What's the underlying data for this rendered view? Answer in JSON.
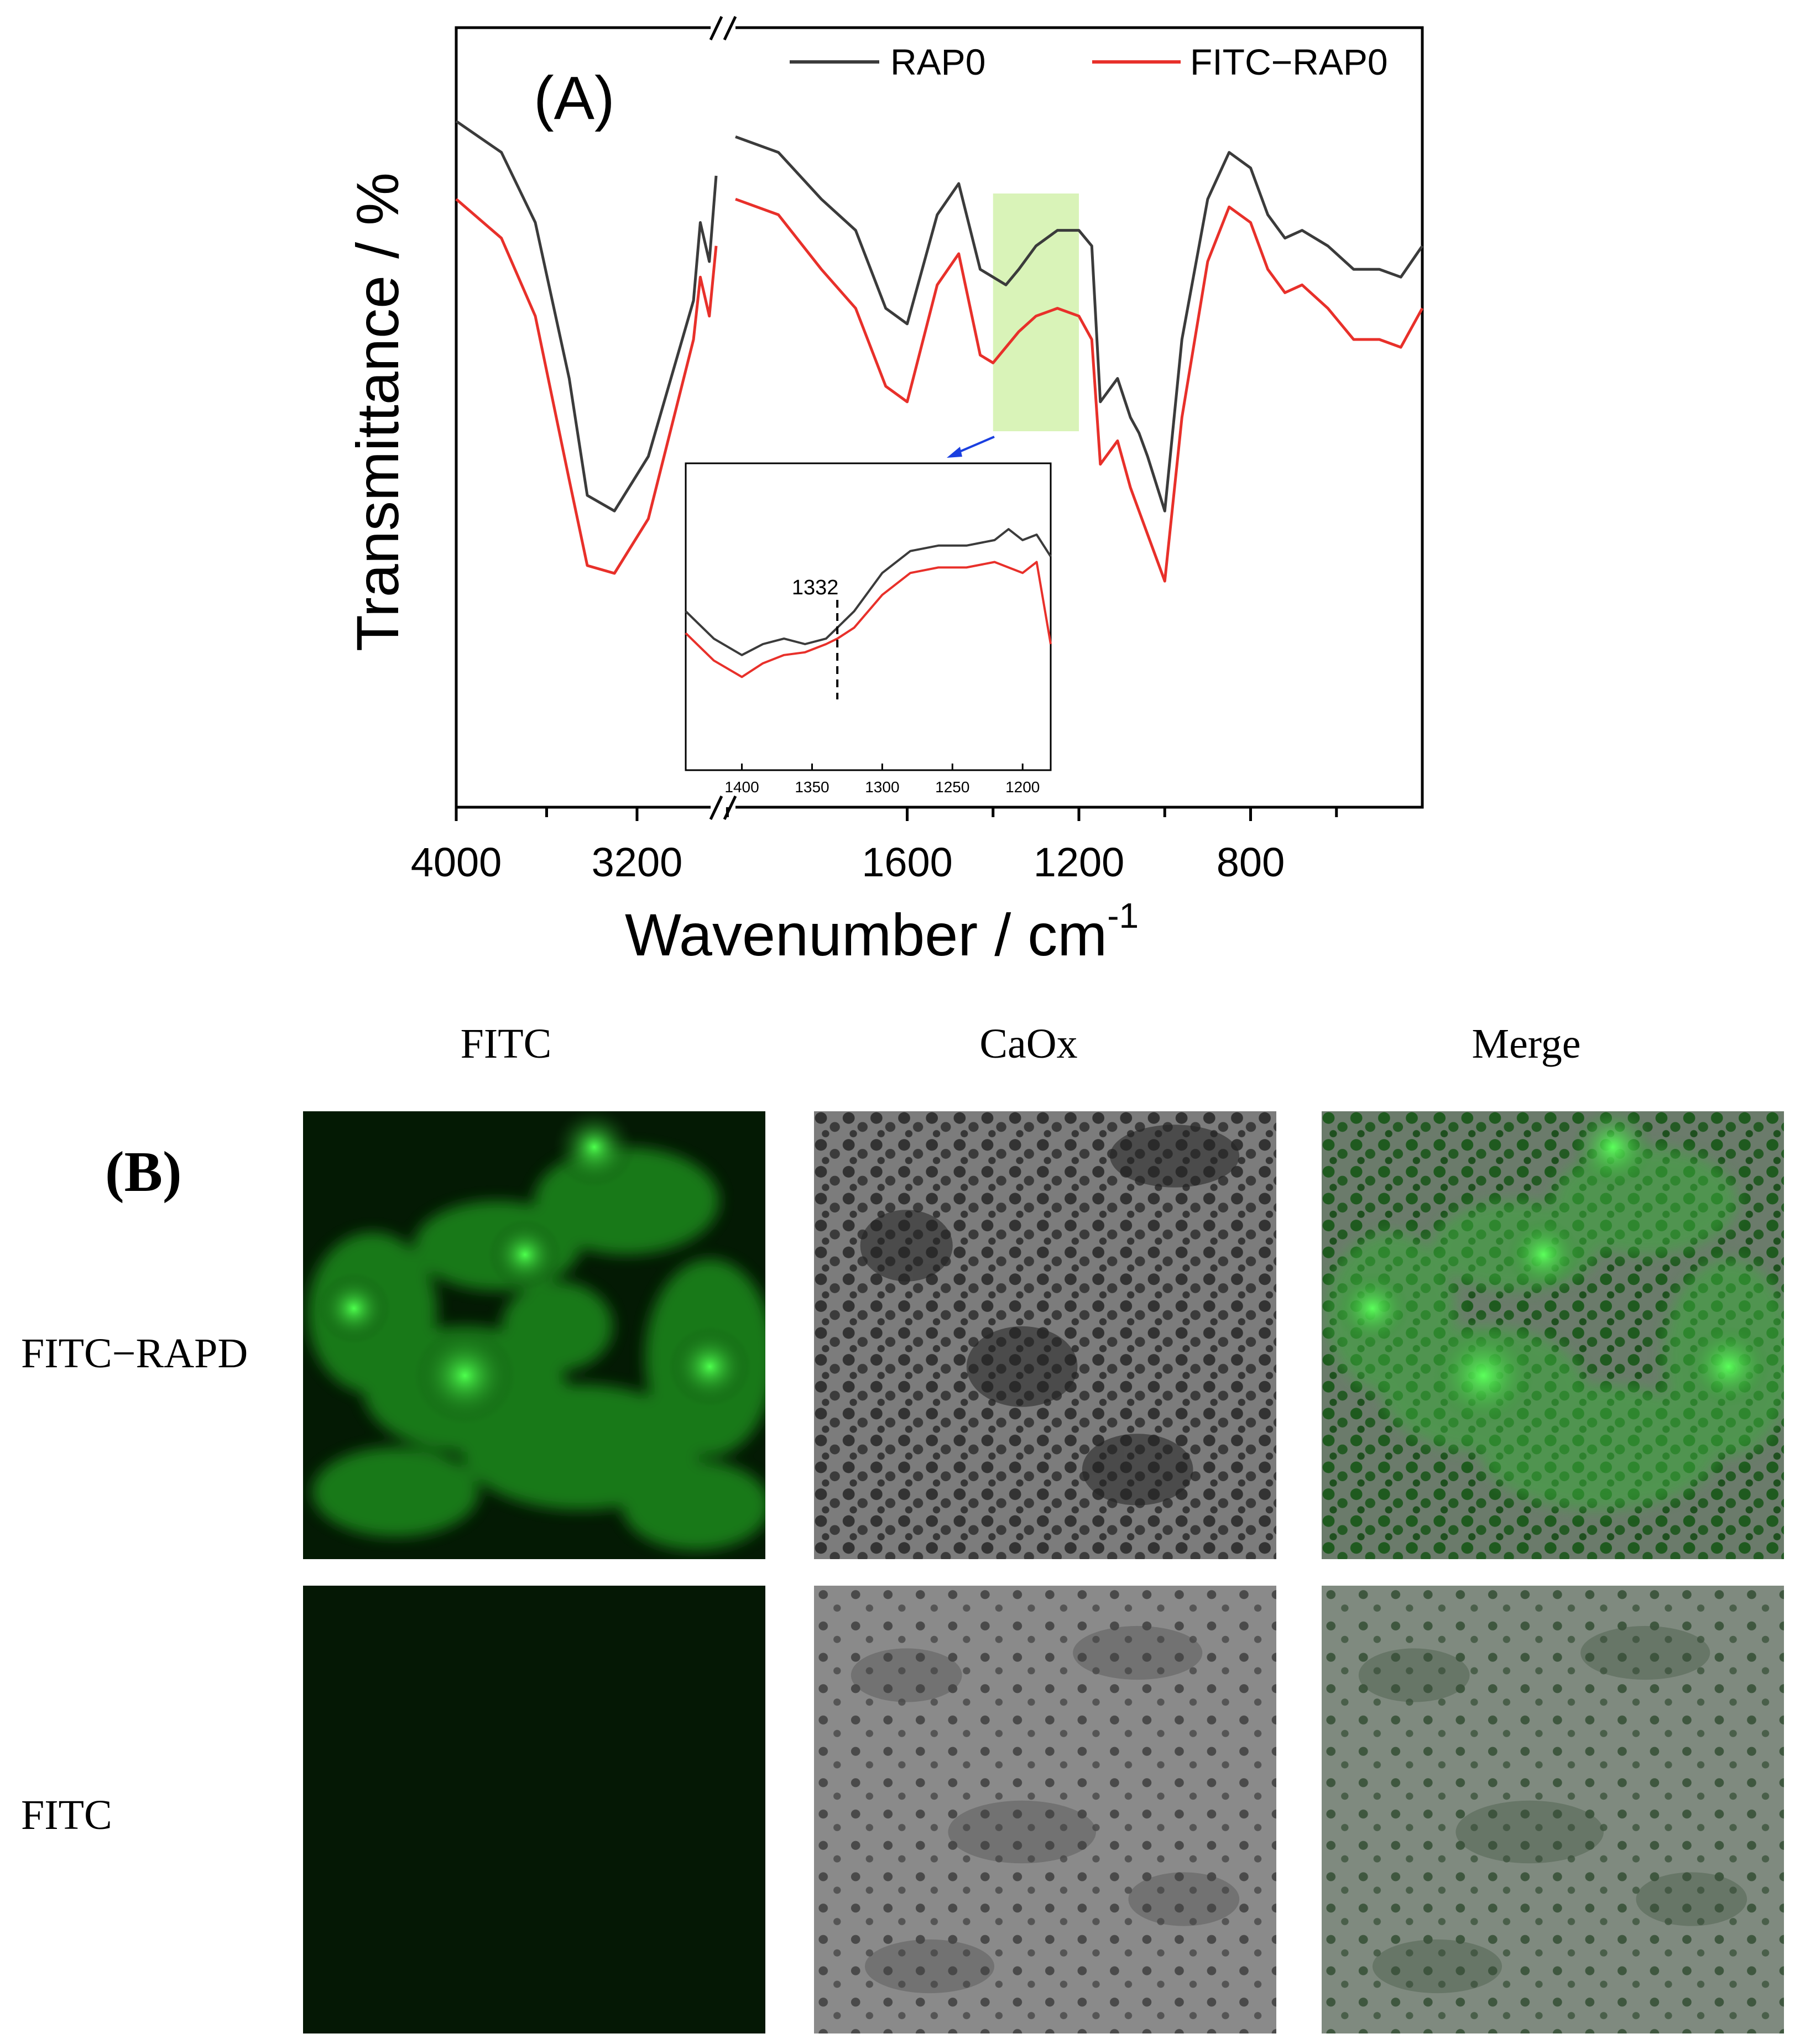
{
  "panel_a": {
    "label": "(A)",
    "legend": [
      "RAP0",
      "FITC−RAP0"
    ],
    "colors": {
      "RAP0": "#3b3b3b",
      "FITC-RAP0": "#e8302a",
      "highlight": "#d9f3b8",
      "arrow": "#1a3fe0"
    }
  },
  "chart_data": [
    {
      "type": "line",
      "title": "(A)",
      "xlabel": "Wavenumber / cm",
      "xlabel_superscript": "-1",
      "ylabel": "Transmittance / %",
      "x_ticks": [
        "4000",
        "3200",
        "1600",
        "1200",
        "800"
      ],
      "x_break": true,
      "series": [
        {
          "name": "RAP0",
          "x": [
            4000,
            3800,
            3650,
            3500,
            3420,
            3300,
            3150,
            2950,
            2920,
            2880,
            2850,
            2000,
            1900,
            1800,
            1720,
            1650,
            1600,
            1530,
            1480,
            1430,
            1400,
            1370,
            1340,
            1300,
            1250,
            1200,
            1170,
            1150,
            1110,
            1080,
            1060,
            1040,
            1000,
            960,
            900,
            850,
            800,
            760,
            720,
            680,
            620,
            560,
            500,
            450,
            400
          ],
          "y": [
            88,
            84,
            75,
            55,
            40,
            38,
            45,
            65,
            75,
            70,
            81,
            86,
            84,
            78,
            74,
            64,
            62,
            76,
            80,
            69,
            68,
            67,
            69,
            72,
            74,
            74,
            72,
            52,
            55,
            50,
            48,
            45,
            38,
            60,
            78,
            84,
            82,
            76,
            73,
            74,
            72,
            69,
            69,
            68,
            72
          ]
        },
        {
          "name": "FITC−RAP0",
          "x": [
            4000,
            3800,
            3650,
            3500,
            3420,
            3300,
            3150,
            2950,
            2920,
            2880,
            2850,
            2000,
            1900,
            1800,
            1720,
            1650,
            1600,
            1530,
            1480,
            1430,
            1400,
            1370,
            1340,
            1300,
            1250,
            1200,
            1170,
            1150,
            1110,
            1080,
            1060,
            1040,
            1000,
            960,
            900,
            850,
            800,
            760,
            720,
            680,
            620,
            560,
            500,
            450,
            400
          ],
          "y": [
            78,
            73,
            63,
            42,
            31,
            30,
            37,
            60,
            68,
            63,
            72,
            78,
            76,
            69,
            64,
            54,
            52,
            67,
            71,
            58,
            57,
            59,
            61,
            63,
            64,
            63,
            60,
            44,
            47,
            41,
            38,
            35,
            29,
            50,
            70,
            77,
            75,
            69,
            66,
            67,
            64,
            60,
            60,
            59,
            64
          ]
        }
      ],
      "ylim": [
        0,
        100
      ],
      "highlight_range": [
        1400,
        1200
      ]
    },
    {
      "type": "line",
      "title": "inset",
      "annotation": "1332",
      "x_ticks": [
        "1400",
        "1350",
        "1300",
        "1250",
        "1200"
      ],
      "series": [
        {
          "name": "RAP0",
          "x": [
            1440,
            1420,
            1400,
            1385,
            1370,
            1355,
            1340,
            1332,
            1320,
            1300,
            1280,
            1260,
            1240,
            1220,
            1210,
            1200,
            1190,
            1180
          ],
          "y": [
            52,
            42,
            36,
            40,
            42,
            40,
            42,
            46,
            52,
            66,
            74,
            76,
            76,
            78,
            82,
            78,
            80,
            72
          ]
        },
        {
          "name": "FITC−RAP0",
          "x": [
            1440,
            1420,
            1400,
            1385,
            1370,
            1355,
            1340,
            1332,
            1320,
            1300,
            1280,
            1260,
            1240,
            1220,
            1210,
            1200,
            1190,
            1180
          ],
          "y": [
            44,
            34,
            28,
            33,
            36,
            37,
            40,
            42,
            46,
            58,
            66,
            68,
            68,
            70,
            68,
            66,
            70,
            40
          ]
        }
      ],
      "xlim": [
        1440,
        1180
      ],
      "ylim": [
        0,
        100
      ]
    }
  ],
  "panel_b": {
    "label": "(B)",
    "columns": [
      "FITC",
      "CaOx",
      "Merge"
    ],
    "rows": [
      "FITC−RAPD",
      "FITC"
    ]
  }
}
